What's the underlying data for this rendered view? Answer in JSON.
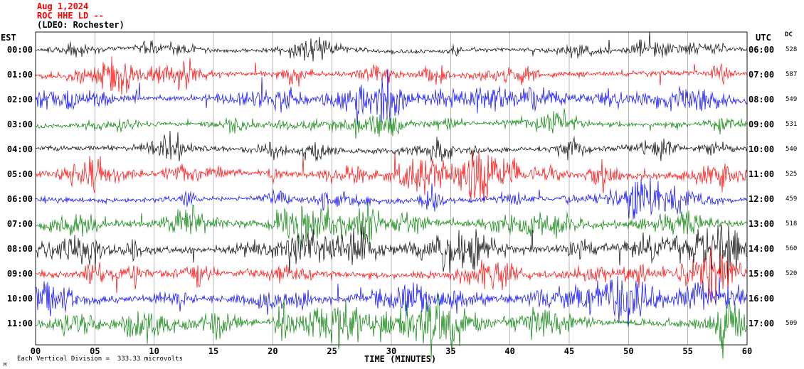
{
  "header": {
    "date": "Aug 1,2024",
    "station": "ROC HHE LD --",
    "location": "(LDEO: Rochester)"
  },
  "axes": {
    "left_label": "EST",
    "right_label": "UTC",
    "dc_label": "DC",
    "x_label": "TIME (MINUTES)",
    "x_ticks": [
      "00",
      "05",
      "10",
      "15",
      "20",
      "25",
      "30",
      "35",
      "40",
      "45",
      "50",
      "55",
      "60"
    ]
  },
  "footer": {
    "scale_note": "Each Vertical Division =  333.33 microvolts",
    "corner_mark": "M"
  },
  "chart_data": {
    "type": "line",
    "subtype": "seismogram-helicorder",
    "title": "ROC HHE LD -- (LDEO: Rochester) Aug 1,2024",
    "xlabel": "TIME (MINUTES)",
    "x_range_minutes": [
      0,
      60
    ],
    "x_tick_interval_minutes": 5,
    "minutes_per_row": 60,
    "vertical_division_microvolts": 333.33,
    "grid": true,
    "rows": [
      {
        "est": "00:00",
        "utc": "06:00",
        "dc": "528",
        "color": "#000000",
        "base_amp": 5,
        "burst_gain": 2.6,
        "seed": 101
      },
      {
        "est": "01:00",
        "utc": "07:00",
        "dc": "587",
        "color": "#ff0000",
        "base_amp": 6,
        "burst_gain": 2.8,
        "seed": 202
      },
      {
        "est": "02:00",
        "utc": "08:00",
        "dc": "549",
        "color": "#0000ff",
        "base_amp": 6,
        "burst_gain": 3.0,
        "seed": 303
      },
      {
        "est": "03:00",
        "utc": "09:00",
        "dc": "531",
        "color": "#008000",
        "base_amp": 5,
        "burst_gain": 2.6,
        "seed": 404
      },
      {
        "est": "04:00",
        "utc": "10:00",
        "dc": "540",
        "color": "#000000",
        "base_amp": 6,
        "burst_gain": 2.8,
        "seed": 505
      },
      {
        "est": "05:00",
        "utc": "11:00",
        "dc": "525",
        "color": "#ff0000",
        "base_amp": 7,
        "burst_gain": 3.0,
        "seed": 606
      },
      {
        "est": "06:00",
        "utc": "12:00",
        "dc": "459",
        "color": "#0000ff",
        "base_amp": 6,
        "burst_gain": 2.8,
        "seed": 707
      },
      {
        "est": "07:00",
        "utc": "13:00",
        "dc": "518",
        "color": "#008000",
        "base_amp": 8,
        "burst_gain": 2.6,
        "seed": 808
      },
      {
        "est": "08:00",
        "utc": "14:00",
        "dc": "560",
        "color": "#000000",
        "base_amp": 9,
        "burst_gain": 2.4,
        "seed": 909
      },
      {
        "est": "09:00",
        "utc": "15:00",
        "dc": "520",
        "color": "#ff0000",
        "base_amp": 8,
        "burst_gain": 2.6,
        "seed": 1010
      },
      {
        "est": "10:00",
        "utc": "16:00",
        "dc": "",
        "color": "#0000ff",
        "base_amp": 8,
        "burst_gain": 2.8,
        "seed": 1111
      },
      {
        "est": "11:00",
        "utc": "17:00",
        "dc": "509",
        "color": "#008000",
        "base_amp": 9,
        "burst_gain": 3.0,
        "seed": 1212
      }
    ]
  }
}
